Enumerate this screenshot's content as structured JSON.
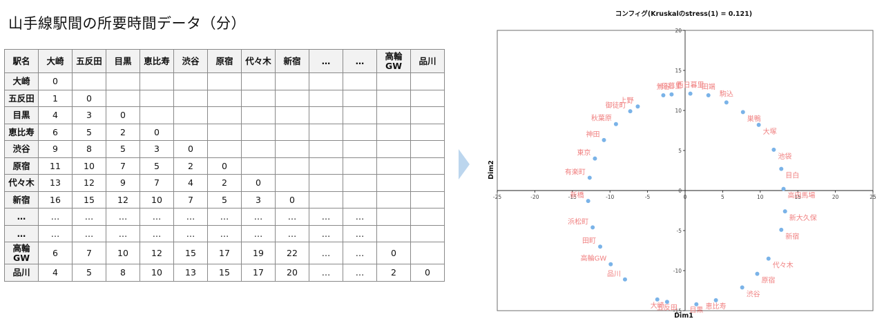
{
  "page": {
    "title": "山手線駅間の所要時間データ（分）"
  },
  "table": {
    "header": [
      "駅名",
      "大崎",
      "五反田",
      "目黒",
      "恵比寿",
      "渋谷",
      "原宿",
      "代々木",
      "新宿",
      "…",
      "…",
      "高輪GW",
      "品川"
    ],
    "rows": [
      {
        "name": "大崎",
        "cells": [
          "0",
          "",
          "",
          "",
          "",
          "",
          "",
          "",
          "",
          "",
          "",
          ""
        ]
      },
      {
        "name": "五反田",
        "cells": [
          "1",
          "0",
          "",
          "",
          "",
          "",
          "",
          "",
          "",
          "",
          "",
          ""
        ]
      },
      {
        "name": "目黒",
        "cells": [
          "4",
          "3",
          "0",
          "",
          "",
          "",
          "",
          "",
          "",
          "",
          "",
          ""
        ]
      },
      {
        "name": "恵比寿",
        "cells": [
          "6",
          "5",
          "2",
          "0",
          "",
          "",
          "",
          "",
          "",
          "",
          "",
          ""
        ]
      },
      {
        "name": "渋谷",
        "cells": [
          "9",
          "8",
          "5",
          "3",
          "0",
          "",
          "",
          "",
          "",
          "",
          "",
          ""
        ]
      },
      {
        "name": "原宿",
        "cells": [
          "11",
          "10",
          "7",
          "5",
          "2",
          "0",
          "",
          "",
          "",
          "",
          "",
          ""
        ]
      },
      {
        "name": "代々木",
        "cells": [
          "13",
          "12",
          "9",
          "7",
          "4",
          "2",
          "0",
          "",
          "",
          "",
          "",
          ""
        ]
      },
      {
        "name": "新宿",
        "cells": [
          "16",
          "15",
          "12",
          "10",
          "7",
          "5",
          "3",
          "0",
          "",
          "",
          "",
          ""
        ]
      },
      {
        "name": "…",
        "cells": [
          "…",
          "…",
          "…",
          "…",
          "…",
          "…",
          "…",
          "…",
          "…",
          "…",
          "",
          ""
        ]
      },
      {
        "name": "…",
        "cells": [
          "…",
          "…",
          "…",
          "…",
          "…",
          "…",
          "…",
          "…",
          "…",
          "…",
          "",
          ""
        ]
      },
      {
        "name": "高輪GW",
        "cells": [
          "6",
          "7",
          "10",
          "12",
          "15",
          "17",
          "19",
          "22",
          "…",
          "…",
          "0",
          ""
        ]
      },
      {
        "name": "品川",
        "cells": [
          "4",
          "5",
          "8",
          "10",
          "13",
          "15",
          "17",
          "20",
          "…",
          "…",
          "2",
          "0"
        ]
      }
    ]
  },
  "colors": {
    "point": "#7ab3e8",
    "label": "#f08080",
    "arrow": "#bcd6ee"
  },
  "chart_data": {
    "type": "scatter",
    "title": "コンフィグ(Kruskalのstress(1) = 0.121)",
    "xlabel": "Dim1",
    "ylabel": "Dim2",
    "xlim": [
      -25,
      25
    ],
    "ylim": [
      -15,
      20
    ],
    "xticks": [
      -25,
      -20,
      -15,
      -10,
      -5,
      0,
      5,
      10,
      15,
      20,
      25
    ],
    "yticks": [
      -15,
      -10,
      -5,
      0,
      5,
      10,
      15,
      20
    ],
    "grid": false,
    "points": [
      {
        "label": "西日暮里",
        "x": 0.7,
        "y": 12.1
      },
      {
        "label": "日暮里",
        "x": -1.8,
        "y": 12.0
      },
      {
        "label": "鶯谷",
        "x": -2.9,
        "y": 11.9
      },
      {
        "label": "上野",
        "x": -6.3,
        "y": 10.5
      },
      {
        "label": "御徒町",
        "x": -7.3,
        "y": 9.9
      },
      {
        "label": "秋葉原",
        "x": -9.2,
        "y": 8.3
      },
      {
        "label": "神田",
        "x": -10.8,
        "y": 6.3
      },
      {
        "label": "東京",
        "x": -12.0,
        "y": 4.0
      },
      {
        "label": "有楽町",
        "x": -12.7,
        "y": 1.6
      },
      {
        "label": "新橋",
        "x": -12.9,
        "y": -1.3
      },
      {
        "label": "浜松町",
        "x": -12.3,
        "y": -4.6
      },
      {
        "label": "田町",
        "x": -11.3,
        "y": -7.0
      },
      {
        "label": "高輪GW",
        "x": -9.9,
        "y": -9.2
      },
      {
        "label": "品川",
        "x": -8.0,
        "y": -11.1
      },
      {
        "label": "大崎",
        "x": -3.7,
        "y": -13.6
      },
      {
        "label": "五反田",
        "x": -2.4,
        "y": -13.9
      },
      {
        "label": "目黒",
        "x": 1.5,
        "y": -14.2
      },
      {
        "label": "恵比寿",
        "x": 4.1,
        "y": -13.7
      },
      {
        "label": "渋谷",
        "x": 7.6,
        "y": -12.1
      },
      {
        "label": "原宿",
        "x": 9.6,
        "y": -10.4
      },
      {
        "label": "代々木",
        "x": 11.1,
        "y": -8.5
      },
      {
        "label": "新宿",
        "x": 12.8,
        "y": -4.9
      },
      {
        "label": "新大久保",
        "x": 13.3,
        "y": -2.6
      },
      {
        "label": "高田馬場",
        "x": 13.1,
        "y": 0.2
      },
      {
        "label": "目白",
        "x": 12.8,
        "y": 2.7
      },
      {
        "label": "池袋",
        "x": 11.8,
        "y": 5.1
      },
      {
        "label": "大塚",
        "x": 9.8,
        "y": 8.2
      },
      {
        "label": "巣鴨",
        "x": 7.7,
        "y": 9.8
      },
      {
        "label": "駒込",
        "x": 5.5,
        "y": 11.0
      },
      {
        "label": "田端",
        "x": 3.1,
        "y": 11.9
      }
    ]
  }
}
